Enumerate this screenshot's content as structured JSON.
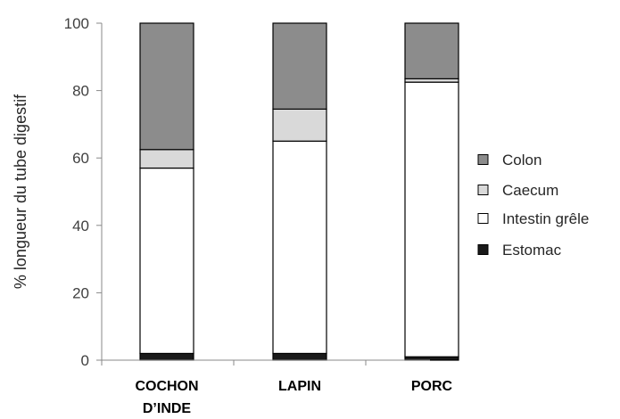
{
  "chart_data": {
    "type": "bar",
    "stacked": true,
    "ylabel": "% longueur du tube digestif",
    "xlabel": "",
    "ylim": [
      0,
      100
    ],
    "yticks": [
      0,
      20,
      40,
      60,
      80,
      100
    ],
    "categories": [
      [
        "COCHON",
        "D’INDE"
      ],
      [
        "LAPIN"
      ],
      [
        "PORC"
      ]
    ],
    "series": [
      {
        "name": "Estomac",
        "color": "#1a1a1a",
        "values": [
          2,
          2,
          1
        ]
      },
      {
        "name": "Intestin grêle",
        "color": "#ffffff",
        "values": [
          55,
          63,
          81.5
        ]
      },
      {
        "name": "Caecum",
        "color": "#d9d9d9",
        "values": [
          5.5,
          9.5,
          1
        ]
      },
      {
        "name": "Colon",
        "color": "#8c8c8c",
        "values": [
          37.5,
          25.5,
          16.5
        ]
      }
    ],
    "legend_order": [
      "Colon",
      "Caecum",
      "Intestin grêle",
      "Estomac"
    ],
    "legend_position": "right",
    "grid": false
  }
}
